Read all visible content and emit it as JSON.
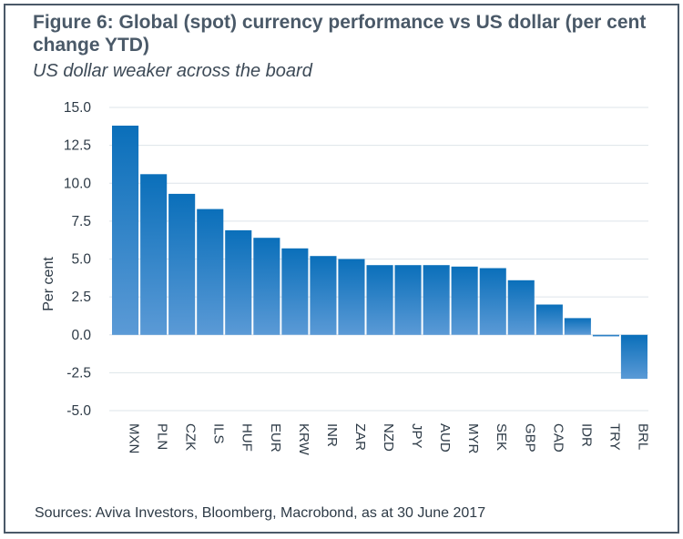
{
  "chart_data": {
    "type": "bar",
    "title": "Figure 6: Global (spot) currency performance vs US dollar (per cent change YTD)",
    "subtitle": "US dollar weaker across the board",
    "xlabel": "",
    "ylabel": "Per cent",
    "ylim": [
      -5.0,
      15.0
    ],
    "yticks": [
      "15.0",
      "12.5",
      "10.0",
      "7.5",
      "5.0",
      "2.5",
      "0.0",
      "-2.5",
      "-5.0"
    ],
    "ytick_values": [
      15.0,
      12.5,
      10.0,
      7.5,
      5.0,
      2.5,
      0.0,
      -2.5,
      -5.0
    ],
    "grid": true,
    "categories": [
      "MXN",
      "PLN",
      "CZK",
      "ILS",
      "HUF",
      "EUR",
      "KRW",
      "INR",
      "ZAR",
      "NZD",
      "JPY",
      "AUD",
      "MYR",
      "SEK",
      "GBP",
      "CAD",
      "IDR",
      "TRY",
      "BRL"
    ],
    "values": [
      13.8,
      10.6,
      9.3,
      8.3,
      6.9,
      6.4,
      5.7,
      5.2,
      5.0,
      4.6,
      4.6,
      4.6,
      4.5,
      4.4,
      3.6,
      2.0,
      1.1,
      -0.1,
      -2.9
    ],
    "colors": {
      "bar_top": "#0a6fba",
      "bar_bottom": "#5b9ad6",
      "grid": "#dde4ea",
      "text": "#2d3a46"
    }
  },
  "header": {
    "title": "Figure 6: Global (spot) currency performance vs US dollar (per cent change YTD)",
    "subtitle": "US dollar weaker across the board"
  },
  "footer": {
    "source": "Sources: Aviva Investors, Bloomberg, Macrobond, as at 30 June 2017"
  }
}
